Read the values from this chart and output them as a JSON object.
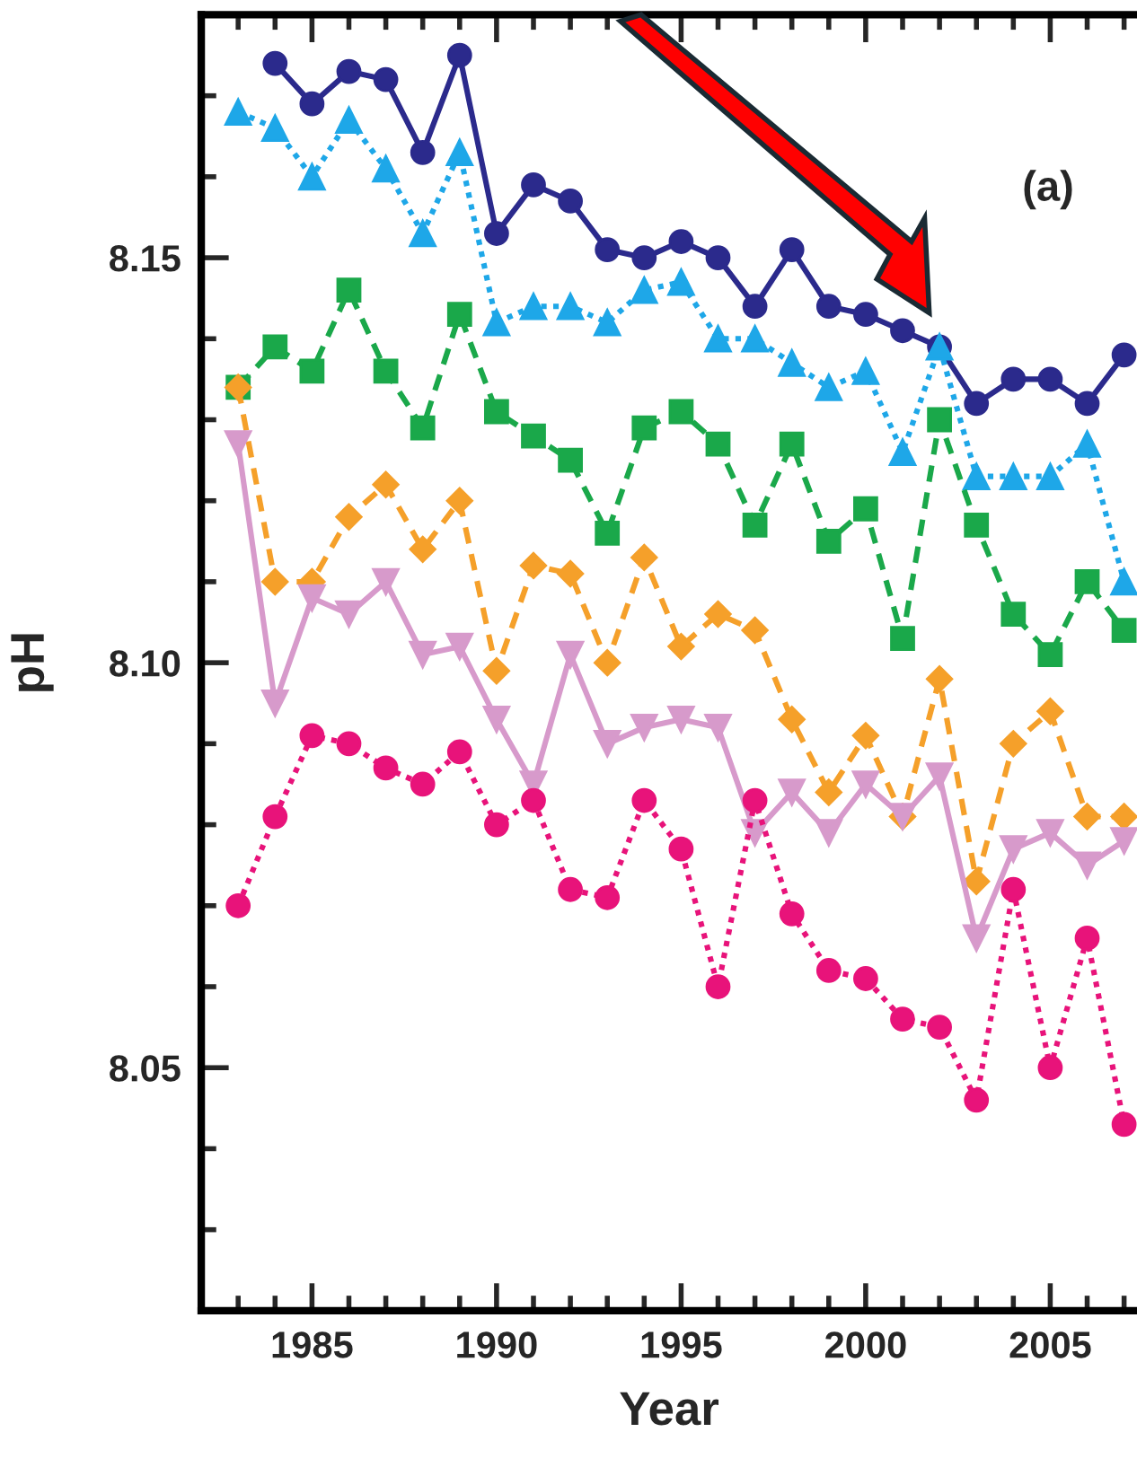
{
  "chart_data": {
    "type": "line",
    "xlabel": "Year",
    "ylabel": "pH",
    "annotations": [
      "(a)"
    ],
    "x": [
      1983,
      1984,
      1985,
      1986,
      1987,
      1988,
      1989,
      1990,
      1991,
      1992,
      1993,
      1994,
      1995,
      1996,
      1997,
      1998,
      1999,
      2000,
      2001,
      2002,
      2003,
      2004,
      2005,
      2006,
      2007
    ],
    "series": [
      {
        "color": "#2b2a8c",
        "marker": "circle",
        "line_style": "solid",
        "values": [
          null,
          8.174,
          8.169,
          8.173,
          8.172,
          8.163,
          8.175,
          8.153,
          8.159,
          8.157,
          8.151,
          8.15,
          8.152,
          8.15,
          8.144,
          8.151,
          8.144,
          8.143,
          8.141,
          8.139,
          8.132,
          8.135,
          8.135,
          8.132,
          8.138
        ]
      },
      {
        "color": "#1ea7e8",
        "marker": "triangle",
        "line_style": "dotted",
        "values": [
          8.168,
          8.166,
          8.16,
          8.167,
          8.161,
          8.153,
          8.163,
          8.142,
          8.144,
          8.144,
          8.142,
          8.146,
          8.147,
          8.14,
          8.14,
          8.137,
          8.134,
          8.136,
          8.126,
          8.139,
          8.123,
          8.123,
          8.123,
          8.127,
          8.11
        ]
      },
      {
        "color": "#1aa84a",
        "marker": "square",
        "line_style": "dashed",
        "values": [
          8.134,
          8.139,
          8.136,
          8.146,
          8.136,
          8.129,
          8.143,
          8.131,
          8.128,
          8.125,
          8.116,
          8.129,
          8.131,
          8.127,
          8.117,
          8.127,
          8.115,
          8.119,
          8.103,
          8.13,
          8.117,
          8.106,
          8.101,
          8.11,
          8.104
        ]
      },
      {
        "color": "#f5a02a",
        "marker": "diamond",
        "line_style": "dashed",
        "values": [
          8.134,
          8.11,
          8.11,
          8.118,
          8.122,
          8.114,
          8.12,
          8.099,
          8.112,
          8.111,
          8.1,
          8.113,
          8.102,
          8.106,
          8.104,
          8.093,
          8.084,
          8.091,
          8.081,
          8.098,
          8.073,
          8.09,
          8.094,
          8.081,
          8.081
        ]
      },
      {
        "color": "#d79acb",
        "marker": "triangle_down",
        "line_style": "solid",
        "values": [
          8.127,
          8.095,
          8.108,
          8.106,
          8.11,
          8.101,
          8.102,
          8.093,
          8.085,
          8.101,
          8.09,
          8.092,
          8.093,
          8.092,
          8.079,
          8.084,
          8.079,
          8.085,
          8.081,
          8.086,
          8.066,
          8.077,
          8.079,
          8.075,
          8.078
        ]
      },
      {
        "color": "#e8137a",
        "marker": "circle",
        "line_style": "dotted",
        "values": [
          8.07,
          8.081,
          8.091,
          8.09,
          8.087,
          8.085,
          8.089,
          8.08,
          8.083,
          8.072,
          8.071,
          8.083,
          8.077,
          8.06,
          8.083,
          8.069,
          8.062,
          8.061,
          8.056,
          8.055,
          8.046,
          8.072,
          8.05,
          8.066,
          8.043
        ]
      }
    ],
    "xlim": [
      1982,
      2007.35
    ],
    "xticks": [
      {
        "value": 1983,
        "label": null
      },
      {
        "value": 1984,
        "label": null
      },
      1985,
      {
        "value": 1986,
        "label": null
      },
      {
        "value": 1987,
        "label": null
      },
      {
        "value": 1988,
        "label": null
      },
      {
        "value": 1989,
        "label": null
      },
      1990,
      {
        "value": 1991,
        "label": null
      },
      {
        "value": 1992,
        "label": null
      },
      {
        "value": 1993,
        "label": null
      },
      {
        "value": 1994,
        "label": null
      },
      1995,
      {
        "value": 1996,
        "label": null
      },
      {
        "value": 1997,
        "label": null
      },
      {
        "value": 1998,
        "label": null
      },
      {
        "value": 1999,
        "label": null
      },
      2000,
      {
        "value": 2001,
        "label": null
      },
      {
        "value": 2002,
        "label": null
      },
      {
        "value": 2003,
        "label": null
      },
      {
        "value": 2004,
        "label": null
      },
      2005,
      {
        "value": 2006,
        "label": null
      },
      {
        "value": 2007,
        "label": null
      }
    ],
    "ylim": [
      8.02,
      8.18
    ],
    "yticks": [
      {
        "value": 8.02,
        "label": null
      },
      {
        "value": 8.03,
        "label": null
      },
      {
        "value": 8.04,
        "label": null
      },
      {
        "value": 8.05,
        "label": "8.05"
      },
      {
        "value": 8.06,
        "label": null
      },
      {
        "value": 8.07,
        "label": null
      },
      {
        "value": 8.08,
        "label": null
      },
      {
        "value": 8.09,
        "label": null
      },
      {
        "value": 8.1,
        "label": "8.10"
      },
      {
        "value": 8.11,
        "label": null
      },
      {
        "value": 8.12,
        "label": null
      },
      {
        "value": 8.13,
        "label": null
      },
      {
        "value": 8.14,
        "label": null
      },
      {
        "value": 8.15,
        "label": "8.15"
      },
      {
        "value": 8.16,
        "label": null
      },
      {
        "value": 8.17,
        "label": null
      }
    ],
    "grid": false,
    "legend": false
  }
}
